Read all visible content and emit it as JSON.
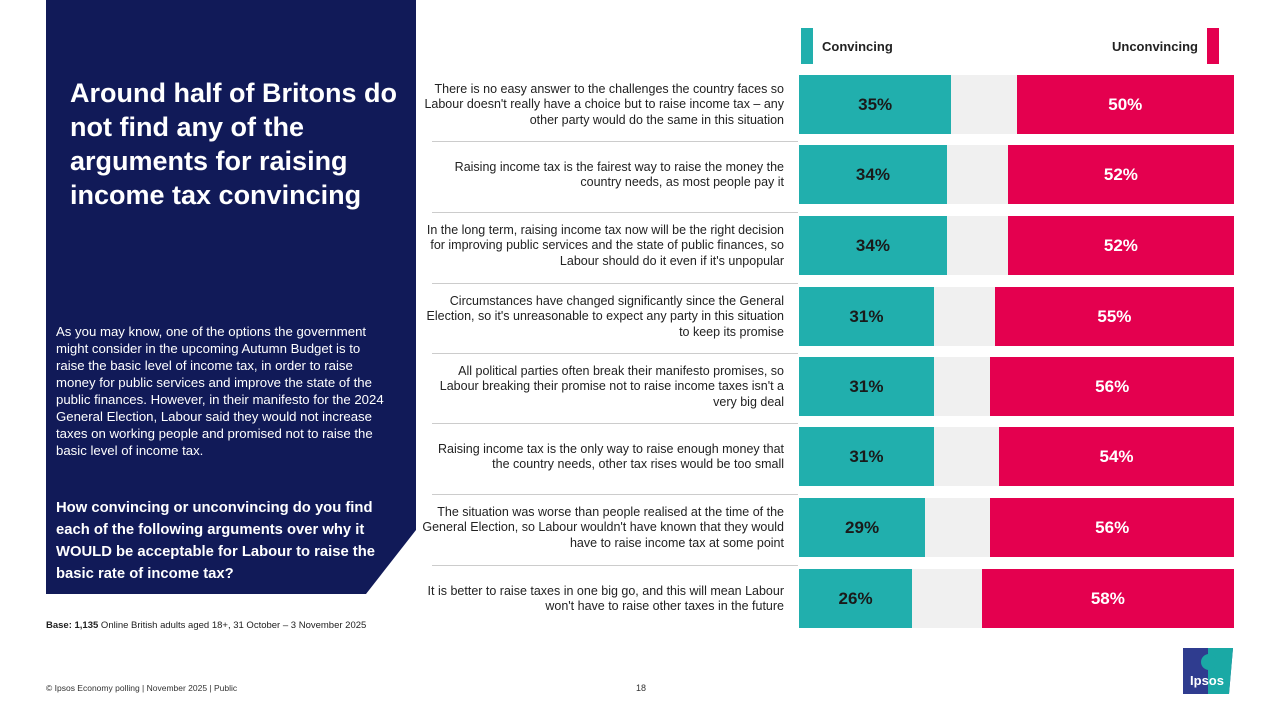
{
  "title": "Around half of Britons do not find any of the arguments for raising income tax convincing",
  "intro": "As you may know, one of the options the government might consider in the upcoming Autumn Budget is to raise the basic level of income tax, in order to raise money for public services and improve the state of the public finances.  However, in their manifesto for the 2024 General Election, Labour said they would not increase taxes on working people and promised not to raise the basic level of income tax.",
  "question": "How convincing or unconvincing do you find each of the following arguments over why it WOULD be acceptable for Labour to raise the basic rate of income tax?",
  "base_label": "Base: 1,135",
  "base_text": " Online British adults aged 18+, 31 October – 3 November 2025",
  "footer": "© Ipsos  Economy polling | November 2025 | Public",
  "page_number": "18",
  "logo_text": "Ipsos",
  "chart_data": {
    "type": "bar",
    "orientation": "horizontal-stacked",
    "xlim": [
      0,
      100
    ],
    "colors": {
      "Convincing": "#21afad",
      "Unconvincing": "#e4004f",
      "remainder": "#f0f0f0"
    },
    "legend": [
      "Convincing",
      "Unconvincing"
    ],
    "categories": [
      "There is no easy answer to the challenges the country faces so Labour doesn't really have a choice but to raise income tax – any other party would do the same in this situation",
      "Raising income tax is the fairest way to raise the money the country needs, as most people pay it",
      "In the long term, raising income tax now will be the right decision for improving public services and the state of public finances, so Labour should do it even if it's unpopular",
      "Circumstances have changed significantly since the General Election, so it's unreasonable to expect any party in this situation to keep its promise",
      "All political parties often break their manifesto promises, so Labour breaking their promise not to raise income taxes isn't a very big deal",
      "Raising income tax is the only way to raise enough money that the country needs, other tax rises would be too small",
      "The situation was worse than people realised at the time of the General Election, so Labour wouldn't have known that they would have to raise income tax at some point",
      "It is better to raise taxes in one big go, and this will mean Labour won't have to raise other taxes in the future"
    ],
    "series": [
      {
        "name": "Convincing",
        "values": [
          35,
          34,
          34,
          31,
          31,
          31,
          29,
          26
        ],
        "labels": [
          "35%",
          "34%",
          "34%",
          "31%",
          "31%",
          "31%",
          "29%",
          "26%"
        ]
      },
      {
        "name": "Unconvincing",
        "values": [
          50,
          52,
          52,
          55,
          56,
          54,
          56,
          58
        ],
        "labels": [
          "50%",
          "52%",
          "52%",
          "55%",
          "56%",
          "54%",
          "56%",
          "58%"
        ]
      }
    ]
  }
}
